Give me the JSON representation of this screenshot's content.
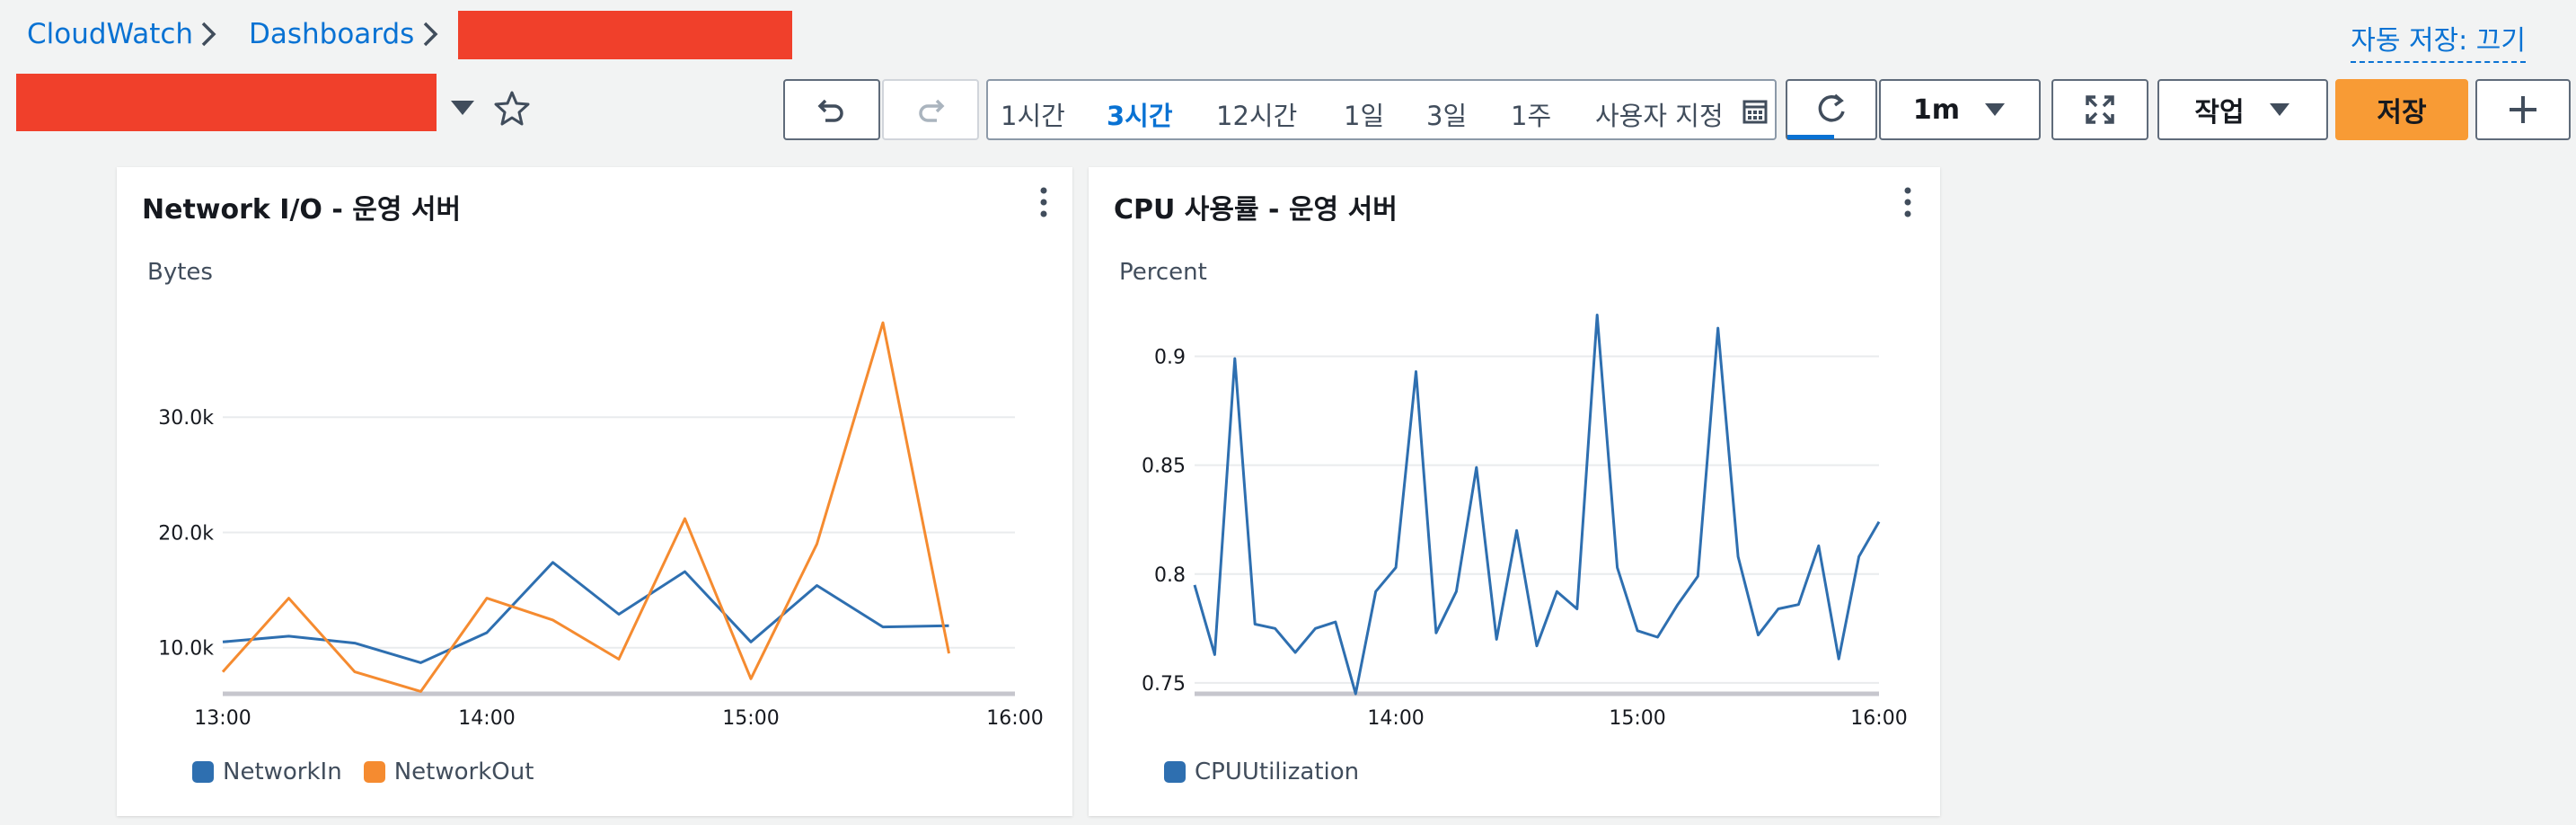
{
  "breadcrumb": {
    "root": "CloudWatch",
    "dashboards": "Dashboards"
  },
  "autosave": "자동 저장: 끄기",
  "timerange": {
    "options": [
      "1시간",
      "3시간",
      "12시간",
      "1일",
      "3일",
      "1주",
      "사용자 지정"
    ],
    "selected": "3시간"
  },
  "refresh": {
    "interval": "1m"
  },
  "actions": {
    "label": "작업",
    "save": "저장"
  },
  "colors": {
    "networkin": "#2e6fb0",
    "networkout": "#f58b30",
    "cpu": "#2e6fb0",
    "accent": "#0972d3",
    "primary": "#f89b35"
  },
  "widgets": [
    {
      "title": "Network I/O - 운영 서버",
      "chart_data": {
        "type": "line",
        "ylabel": "Bytes",
        "ylim": [
          6000,
          40000
        ],
        "xlim": [
          "13:00",
          "16:00"
        ],
        "xticks": [
          "13:00",
          "14:00",
          "15:00",
          "16:00"
        ],
        "yticks": [
          "10.0k",
          "20.0k",
          "30.0k"
        ],
        "x": [
          "13:00",
          "13:15",
          "13:30",
          "13:45",
          "14:00",
          "14:15",
          "14:30",
          "14:45",
          "15:00",
          "15:15",
          "15:30",
          "15:45"
        ],
        "series": [
          {
            "name": "NetworkIn",
            "values": [
              10500,
              11000,
              10400,
              8700,
              11300,
              17400,
              12900,
              16600,
              10500,
              15400,
              11800,
              11900
            ]
          },
          {
            "name": "NetworkOut",
            "values": [
              7900,
              14300,
              7900,
              6200,
              14300,
              12400,
              9000,
              21200,
              7300,
              19000,
              38200,
              9500
            ]
          }
        ],
        "grid": true,
        "legend": "bottom-left"
      }
    },
    {
      "title": "CPU 사용률 - 운영 서버",
      "chart_data": {
        "type": "line",
        "ylabel": "Percent",
        "ylim": [
          0.745,
          0.925
        ],
        "xlim": [
          "13:10",
          "16:00"
        ],
        "xticks": [
          "14:00",
          "15:00",
          "16:00"
        ],
        "yticks": [
          "0.75",
          "0.8",
          "0.85",
          "0.9"
        ],
        "x": [
          "13:10",
          "13:15",
          "13:20",
          "13:25",
          "13:30",
          "13:35",
          "13:40",
          "13:45",
          "13:50",
          "13:55",
          "14:00",
          "14:05",
          "14:10",
          "14:15",
          "14:20",
          "14:25",
          "14:30",
          "14:35",
          "14:40",
          "14:45",
          "14:50",
          "14:55",
          "15:00",
          "15:05",
          "15:10",
          "15:15",
          "15:20",
          "15:25",
          "15:30",
          "15:35",
          "15:40",
          "15:45",
          "15:50",
          "15:55",
          "16:00"
        ],
        "series": [
          {
            "name": "CPUUtilization",
            "values": [
              0.795,
              0.763,
              0.899,
              0.777,
              0.775,
              0.764,
              0.775,
              0.778,
              0.745,
              0.792,
              0.803,
              0.893,
              0.773,
              0.792,
              0.849,
              0.77,
              0.82,
              0.767,
              0.792,
              0.784,
              0.919,
              0.803,
              0.774,
              0.771,
              0.786,
              0.799,
              0.913,
              0.808,
              0.772,
              0.784,
              0.786,
              0.813,
              0.761,
              0.808,
              0.824
            ]
          }
        ],
        "grid": true,
        "legend": "bottom-left"
      }
    }
  ]
}
